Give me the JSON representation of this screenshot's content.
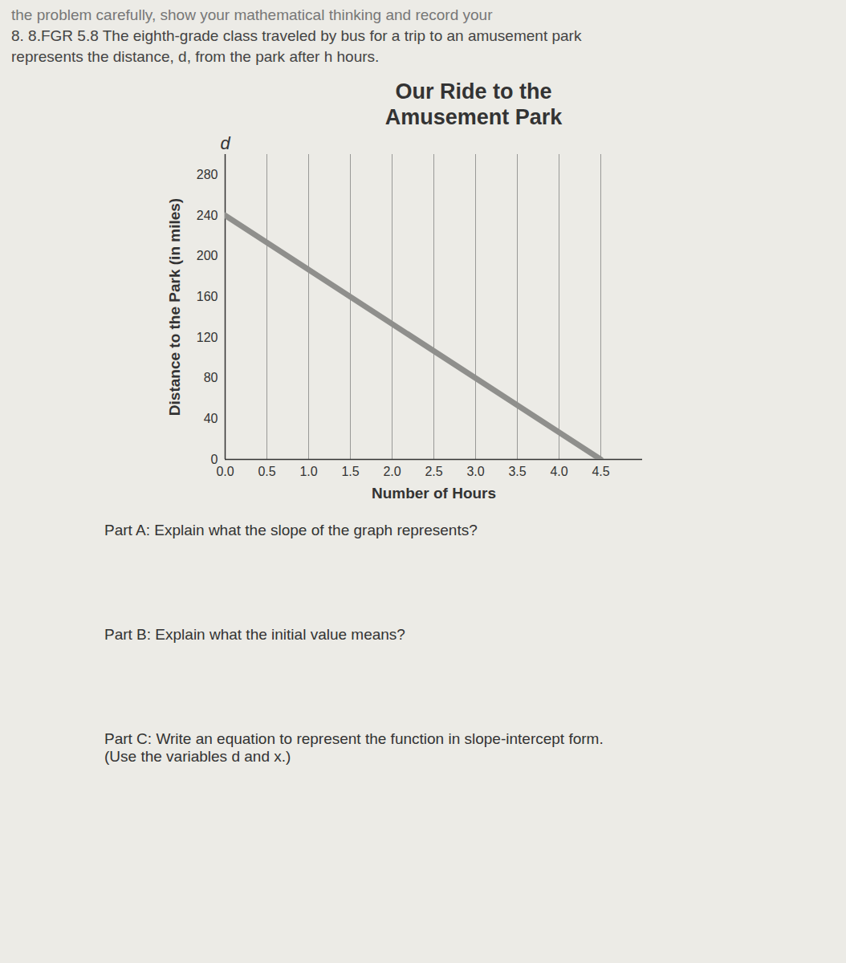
{
  "document": {
    "header": "the problem carefully, show your mathematical thinking and record your",
    "problem": [
      "8. 8.FGR 5.8 The eighth-grade class traveled by bus for a trip to an amusement park",
      "represents the distance, d, from the park after h hours."
    ],
    "parts": [
      "Part A: Explain what the slope of the graph represents?",
      "Part B: Explain what the initial value means?",
      "Part C: Write an equation to represent the function in slope-intercept form.",
      "(Use the variables d and x.)"
    ]
  },
  "chart_data": {
    "type": "line",
    "title": "Our Ride to the Amusement Park",
    "x_label": "Number of Hours",
    "y_label": "Distance to the Park (in miles)",
    "annotations": [
      "d"
    ],
    "x": [
      0,
      4.5
    ],
    "values": [
      240,
      0
    ],
    "color": "#8f8f8c",
    "xlim": [
      0,
      5
    ],
    "xticks": [
      0,
      0.5,
      1,
      1.5,
      2,
      2.5,
      3,
      3.5,
      4,
      4.5
    ],
    "ylim": [
      0,
      300
    ],
    "yticks": [
      0,
      40,
      80,
      120,
      160,
      200,
      240,
      280
    ],
    "grid": true
  }
}
